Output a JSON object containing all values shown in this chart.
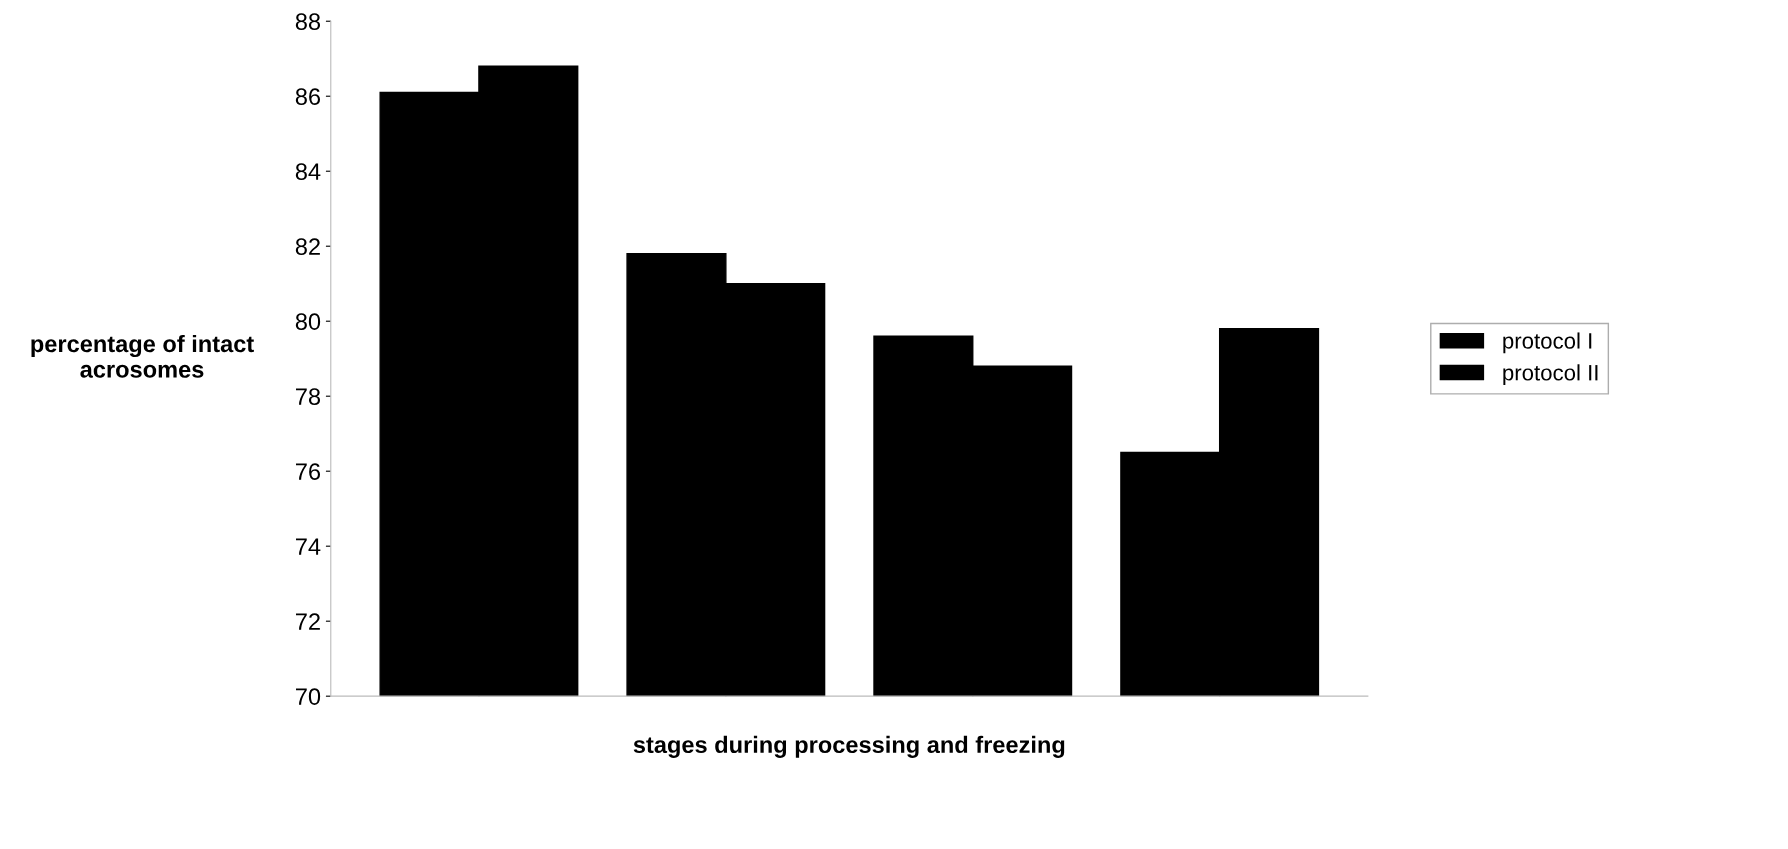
{
  "chart_data": {
    "type": "bar",
    "xlabel": "stages during processing and freezing",
    "ylabel": "percentage of intact\nacrosomes",
    "categories": [
      null,
      null,
      null,
      null
    ],
    "series": [
      {
        "name": "protocol I",
        "color": "#000000",
        "values": [
          86.1,
          81.8,
          79.6,
          76.5
        ]
      },
      {
        "name": "protocol II",
        "color": "#000000",
        "values": [
          86.8,
          81.0,
          78.8,
          79.8
        ]
      }
    ],
    "ylim": [
      70,
      88
    ],
    "yticks": [
      70,
      72,
      74,
      76,
      78,
      80,
      82,
      84,
      86,
      88
    ],
    "grid": false,
    "legend": "right"
  }
}
